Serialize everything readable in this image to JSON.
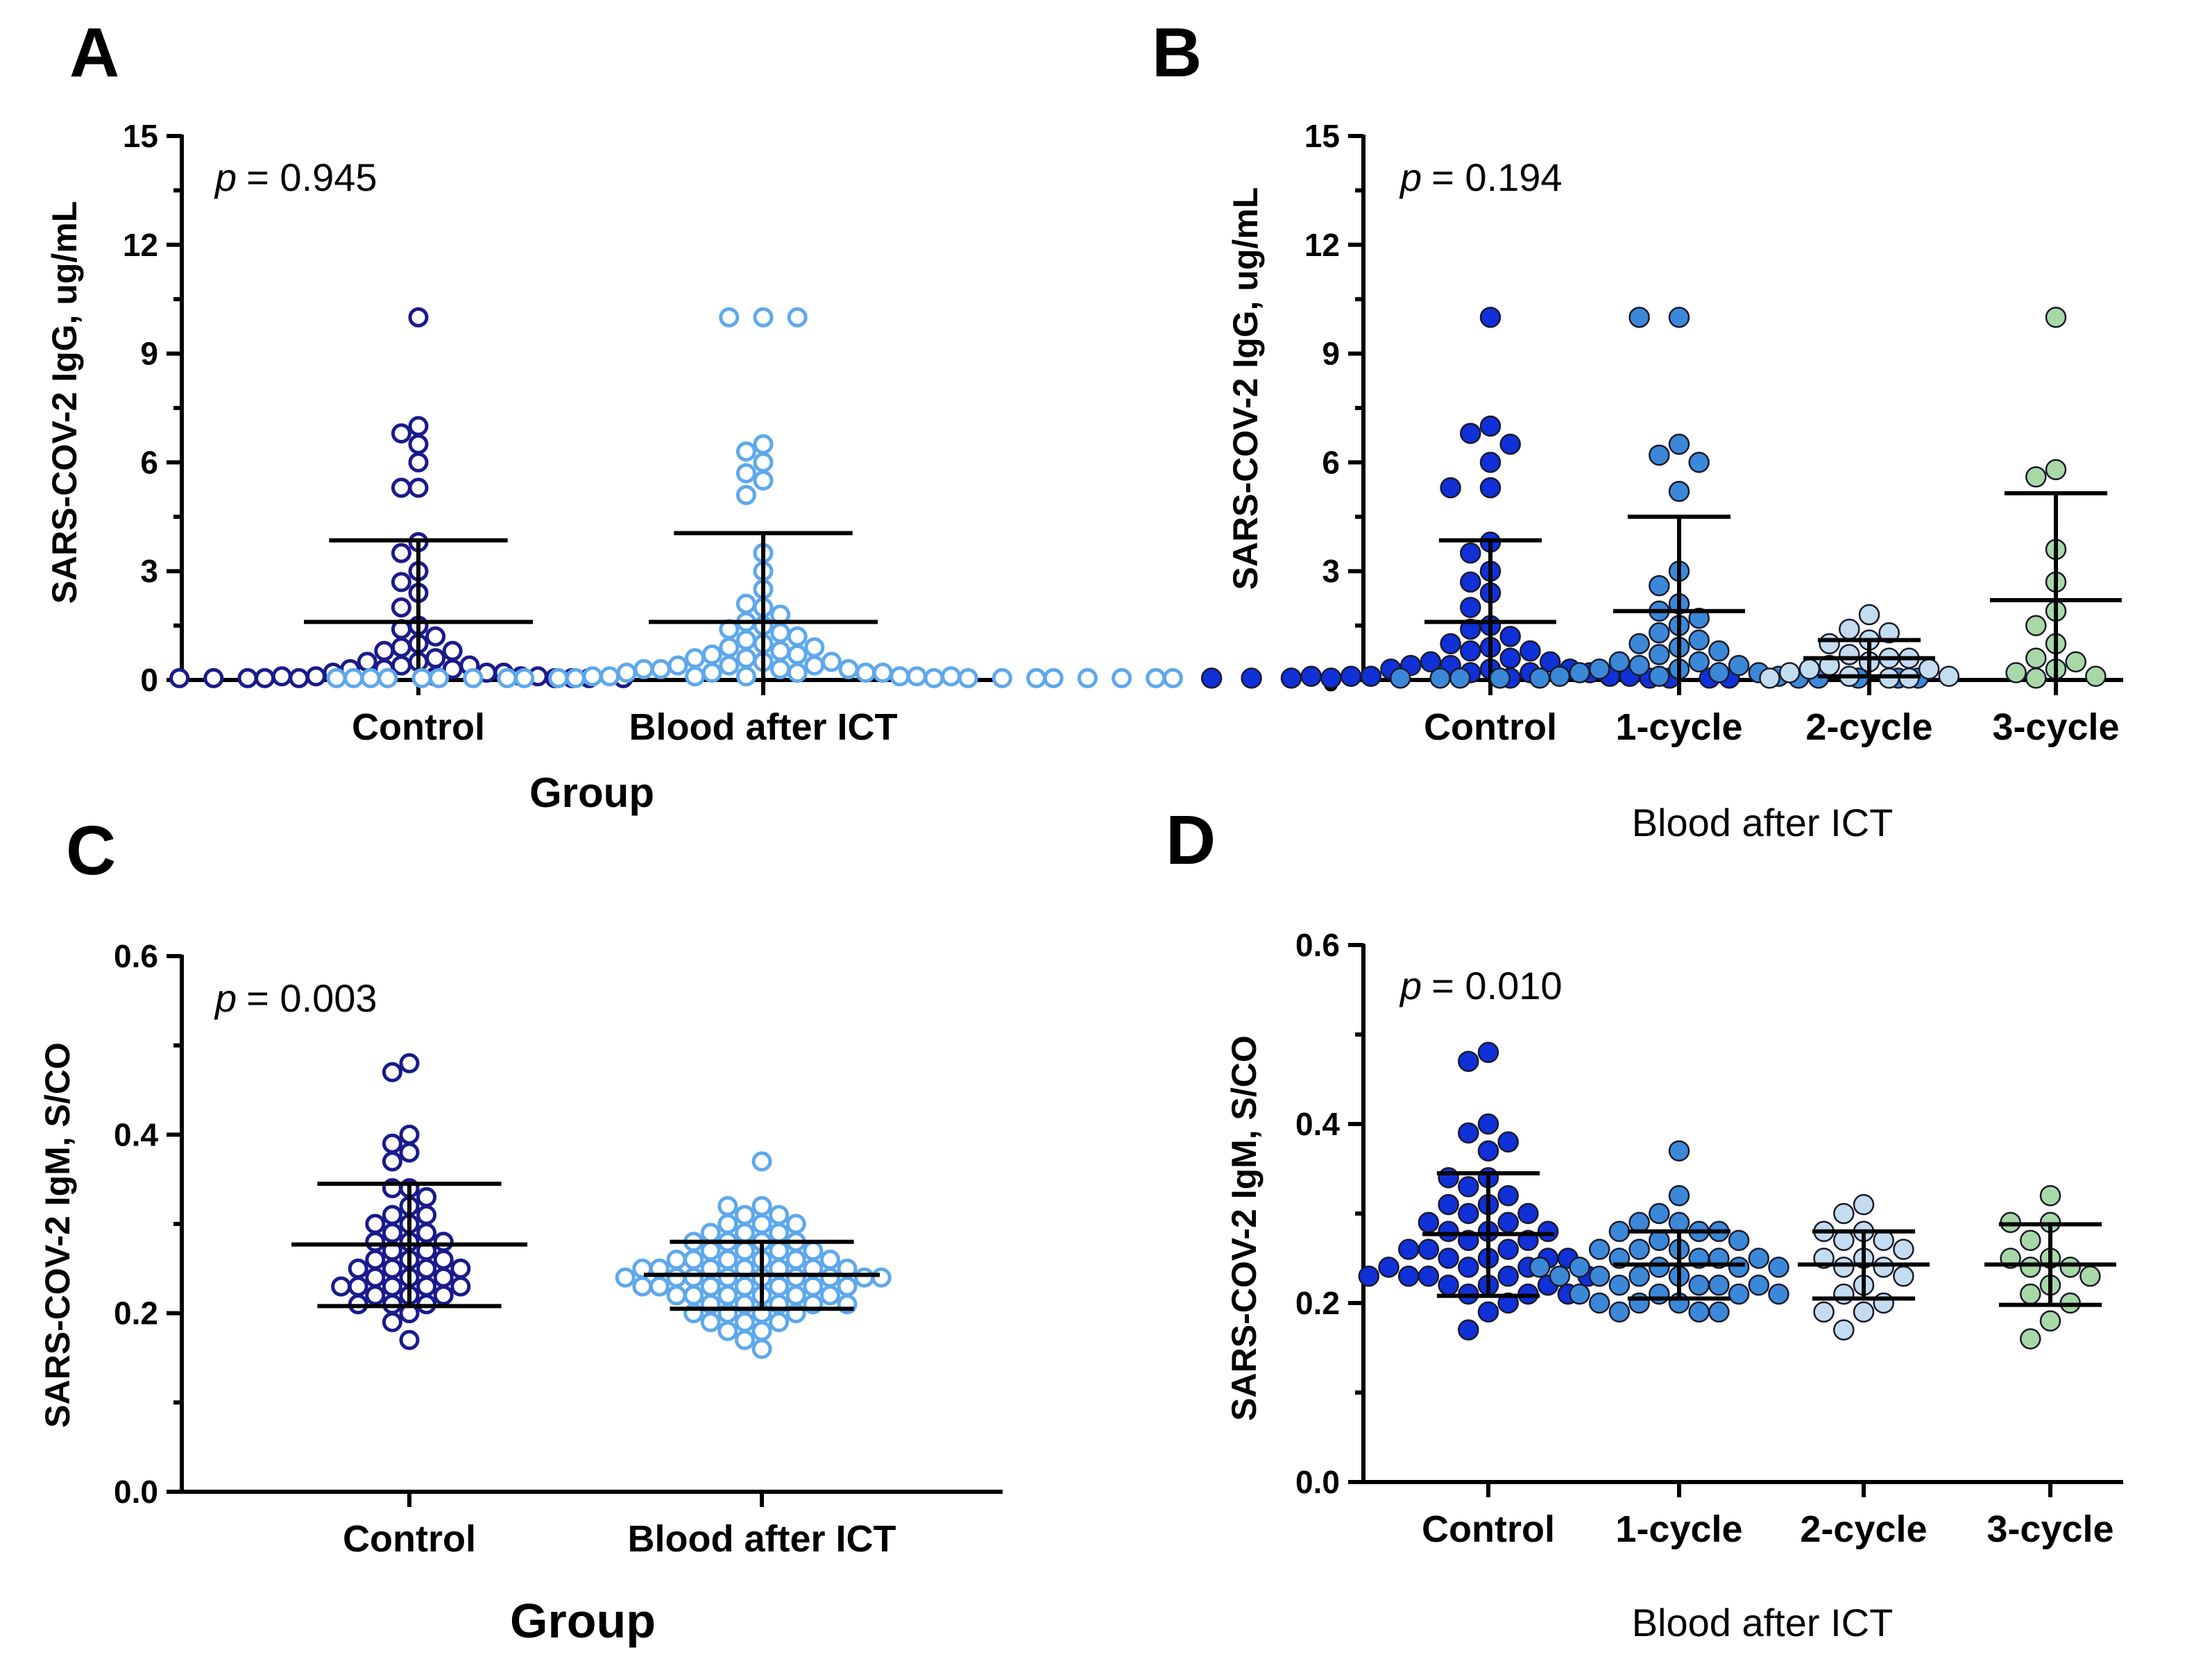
{
  "figure": {
    "colors": {
      "control_hollow": "#1a1a8c",
      "blood_hollow": "#5ea8ec",
      "control": "#1030d8",
      "cycle1": "#3c88d8",
      "cycle2": "#c4dcf0",
      "cycle3": "#a8d8a8",
      "edge": "#1a1a2a"
    }
  },
  "chart_data": [
    {
      "panel": "A",
      "type": "scatter",
      "ylabel": "SARS-COV-2 IgG, ug/mL",
      "xlabel": "Group",
      "ylim": [
        0,
        15
      ],
      "yticks": [
        0,
        3,
        6,
        9,
        12,
        15
      ],
      "p_label": "p",
      "p_value": "= 0.945",
      "categories": [
        {
          "name": "Control",
          "mean": 1.6,
          "upper": 3.85,
          "lower": 0,
          "values": [
            10,
            7,
            6.8,
            6.5,
            6.0,
            5.3,
            5.3,
            3.8,
            3.5,
            3.0,
            2.7,
            2.4,
            2.0,
            1.5,
            1.4,
            1.2,
            1.0,
            0.9,
            0.8,
            0.8,
            0.6,
            0.5,
            0.5,
            0.4,
            0.4,
            0.3,
            0.3,
            0.3,
            0.2,
            0.2,
            0.2,
            0.1,
            0.1,
            0.1,
            0.1,
            0.1,
            0.05,
            0.05,
            0.05,
            0.05,
            0.05,
            0.05,
            0.05,
            0.05,
            0.05
          ]
        },
        {
          "name": "Blood after ICT",
          "mean": 1.6,
          "upper": 4.05,
          "lower": 0,
          "values": [
            10,
            10,
            10,
            6.5,
            6.3,
            6.0,
            5.7,
            5.5,
            5.1,
            3.5,
            3.0,
            2.5,
            2.1,
            2.0,
            1.8,
            1.6,
            1.5,
            1.4,
            1.3,
            1.2,
            1.1,
            1.0,
            0.9,
            0.9,
            0.8,
            0.7,
            0.7,
            0.6,
            0.6,
            0.5,
            0.5,
            0.4,
            0.4,
            0.4,
            0.3,
            0.3,
            0.3,
            0.3,
            0.2,
            0.2,
            0.2,
            0.2,
            0.2,
            0.1,
            0.1,
            0.1,
            0.1,
            0.1,
            0.1,
            0.1,
            0.05,
            0.05,
            0.05,
            0.05,
            0.05,
            0.05,
            0.05,
            0.05,
            0.05,
            0.05,
            0.05,
            0.05,
            0.05,
            0.05,
            0.05,
            0.05,
            0.05,
            0.05,
            0.05,
            0.05
          ]
        }
      ]
    },
    {
      "panel": "B",
      "type": "scatter",
      "ylabel": "SARS-COV-2 IgG, ug/mL",
      "xlabel": "Blood after ICT",
      "ylim": [
        0,
        15
      ],
      "yticks": [
        0,
        3,
        6,
        9,
        12,
        15
      ],
      "p_label": "p",
      "p_value": "= 0.194",
      "categories": [
        {
          "name": "Control",
          "mean": 1.6,
          "upper": 3.85,
          "lower": 0,
          "values": [
            10,
            7,
            6.8,
            6.5,
            6.0,
            5.3,
            5.3,
            3.8,
            3.5,
            3.0,
            2.7,
            2.4,
            2.0,
            1.5,
            1.4,
            1.2,
            1.0,
            0.9,
            0.8,
            0.8,
            0.6,
            0.5,
            0.5,
            0.4,
            0.4,
            0.3,
            0.3,
            0.3,
            0.2,
            0.2,
            0.2,
            0.1,
            0.1,
            0.1,
            0.1,
            0.1,
            0.05,
            0.05,
            0.05,
            0.05,
            0.05,
            0.05,
            0.05,
            0.05,
            0.05
          ]
        },
        {
          "name": "1-cycle",
          "mean": 1.9,
          "upper": 4.5,
          "lower": 0,
          "values": [
            10,
            10,
            6.5,
            6.2,
            6.0,
            5.2,
            3.0,
            2.6,
            2.1,
            1.9,
            1.7,
            1.5,
            1.3,
            1.1,
            1.0,
            0.9,
            0.8,
            0.7,
            0.5,
            0.5,
            0.4,
            0.4,
            0.3,
            0.3,
            0.2,
            0.2,
            0.2,
            0.1,
            0.1,
            0.1,
            0.05,
            0.05,
            0.05,
            0.05,
            0.05,
            0.05,
            0.05,
            0.05,
            0.05,
            0.05
          ]
        },
        {
          "name": "2-cycle",
          "mean": 0.6,
          "upper": 1.1,
          "lower": 0.1,
          "values": [
            1.8,
            1.4,
            1.3,
            1.1,
            1.0,
            0.7,
            0.6,
            0.6,
            0.5,
            0.4,
            0.3,
            0.3,
            0.2,
            0.1,
            0.1,
            0.05,
            0.05,
            0.05
          ]
        },
        {
          "name": "3-cycle",
          "mean": 2.2,
          "upper": 5.15,
          "lower": 0,
          "values": [
            10,
            5.8,
            5.6,
            3.6,
            2.7,
            1.9,
            1.5,
            1.0,
            0.6,
            0.5,
            0.3,
            0.2,
            0.1,
            0.05
          ]
        }
      ]
    },
    {
      "panel": "C",
      "type": "scatter",
      "ylabel": "SARS-COV-2 IgM, S/CO",
      "xlabel": "Group",
      "ylim": [
        0,
        0.6
      ],
      "yticks": [
        "0.0",
        "0.2",
        "0.4",
        "0.6"
      ],
      "p_label": "p",
      "p_value": "= 0.003",
      "categories": [
        {
          "name": "Control",
          "mean": 0.277,
          "upper": 0.345,
          "lower": 0.208,
          "values": [
            0.48,
            0.47,
            0.4,
            0.39,
            0.38,
            0.37,
            0.34,
            0.34,
            0.33,
            0.32,
            0.31,
            0.31,
            0.3,
            0.3,
            0.29,
            0.29,
            0.28,
            0.28,
            0.28,
            0.27,
            0.27,
            0.26,
            0.26,
            0.26,
            0.25,
            0.25,
            0.25,
            0.25,
            0.24,
            0.24,
            0.24,
            0.23,
            0.23,
            0.23,
            0.23,
            0.23,
            0.22,
            0.22,
            0.22,
            0.21,
            0.21,
            0.21,
            0.2,
            0.19,
            0.17
          ]
        },
        {
          "name": "Blood after ICT",
          "mean": 0.243,
          "upper": 0.28,
          "lower": 0.205,
          "values": [
            0.37,
            0.32,
            0.32,
            0.31,
            0.31,
            0.3,
            0.3,
            0.3,
            0.29,
            0.29,
            0.29,
            0.28,
            0.28,
            0.28,
            0.28,
            0.27,
            0.27,
            0.27,
            0.27,
            0.26,
            0.26,
            0.26,
            0.26,
            0.26,
            0.26,
            0.25,
            0.25,
            0.25,
            0.25,
            0.25,
            0.25,
            0.25,
            0.24,
            0.24,
            0.24,
            0.24,
            0.24,
            0.24,
            0.24,
            0.24,
            0.24,
            0.23,
            0.23,
            0.23,
            0.23,
            0.23,
            0.23,
            0.23,
            0.22,
            0.22,
            0.22,
            0.22,
            0.22,
            0.22,
            0.21,
            0.21,
            0.21,
            0.21,
            0.21,
            0.2,
            0.2,
            0.2,
            0.2,
            0.19,
            0.19,
            0.19,
            0.18,
            0.18,
            0.17,
            0.16
          ]
        }
      ]
    },
    {
      "panel": "D",
      "type": "scatter",
      "ylabel": "SARS-COV-2 IgM, S/CO",
      "xlabel": "Blood after ICT",
      "ylim": [
        0,
        0.6
      ],
      "yticks": [
        "0.0",
        "0.2",
        "0.4",
        "0.6"
      ],
      "p_label": "p",
      "p_value": "= 0.010",
      "categories": [
        {
          "name": "Control",
          "mean": 0.277,
          "upper": 0.345,
          "lower": 0.208,
          "values": [
            0.48,
            0.47,
            0.4,
            0.39,
            0.38,
            0.37,
            0.34,
            0.34,
            0.33,
            0.32,
            0.31,
            0.31,
            0.3,
            0.3,
            0.29,
            0.29,
            0.28,
            0.28,
            0.28,
            0.27,
            0.27,
            0.26,
            0.26,
            0.26,
            0.25,
            0.25,
            0.25,
            0.25,
            0.24,
            0.24,
            0.24,
            0.23,
            0.23,
            0.23,
            0.23,
            0.23,
            0.22,
            0.22,
            0.22,
            0.21,
            0.21,
            0.21,
            0.2,
            0.19,
            0.17
          ]
        },
        {
          "name": "1-cycle",
          "mean": 0.243,
          "upper": 0.28,
          "lower": 0.205,
          "values": [
            0.37,
            0.32,
            0.3,
            0.29,
            0.29,
            0.28,
            0.28,
            0.28,
            0.27,
            0.27,
            0.26,
            0.26,
            0.26,
            0.25,
            0.25,
            0.25,
            0.25,
            0.24,
            0.24,
            0.24,
            0.24,
            0.24,
            0.23,
            0.23,
            0.23,
            0.23,
            0.22,
            0.22,
            0.22,
            0.22,
            0.21,
            0.21,
            0.21,
            0.21,
            0.2,
            0.2,
            0.2,
            0.19,
            0.19,
            0.19
          ]
        },
        {
          "name": "2-cycle",
          "mean": 0.243,
          "upper": 0.28,
          "lower": 0.205,
          "values": [
            0.31,
            0.3,
            0.28,
            0.28,
            0.27,
            0.27,
            0.26,
            0.25,
            0.25,
            0.24,
            0.24,
            0.23,
            0.22,
            0.21,
            0.2,
            0.19,
            0.19,
            0.17
          ]
        },
        {
          "name": "3-cycle",
          "mean": 0.243,
          "upper": 0.288,
          "lower": 0.198,
          "values": [
            0.32,
            0.29,
            0.29,
            0.27,
            0.25,
            0.25,
            0.24,
            0.24,
            0.23,
            0.22,
            0.21,
            0.2,
            0.18,
            0.16
          ]
        }
      ]
    }
  ]
}
